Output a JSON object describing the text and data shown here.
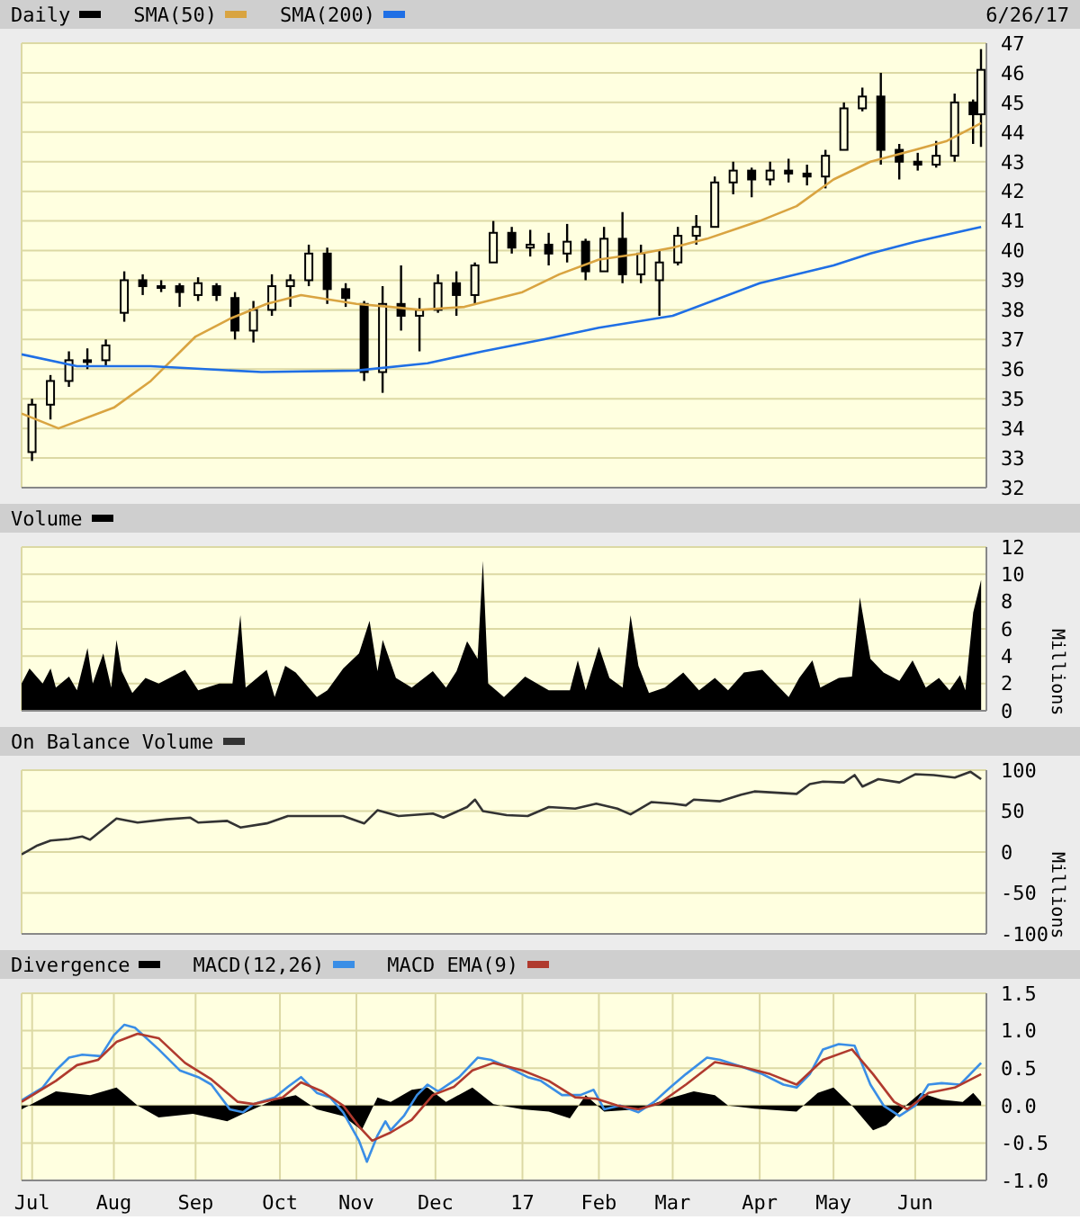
{
  "chart_data": [
    {
      "type": "candlestick",
      "legend": "top left",
      "grid": true,
      "tick_labels": "y",
      "annotations": [
        "6/26/17"
      ],
      "xlim": [
        "2016-06-27",
        "2017-06-28"
      ],
      "xticks": [
        {
          "value": "2016-07-01",
          "label": null
        },
        {
          "value": "2016-08-01",
          "label": null
        },
        {
          "value": "2016-09-01",
          "label": null
        },
        {
          "value": "2016-10-03",
          "label": null
        },
        {
          "value": "2016-11-01",
          "label": null
        },
        {
          "value": "2016-12-01",
          "label": null
        },
        {
          "value": "2017-01-03",
          "label": null
        },
        {
          "value": "2017-02-01",
          "label": null
        },
        {
          "value": "2017-03-01",
          "label": null
        },
        {
          "value": "2017-04-03",
          "label": null
        },
        {
          "value": "2017-05-01",
          "label": null
        },
        {
          "value": "2017-06-01",
          "label": null
        }
      ],
      "ylim": [
        32,
        47
      ],
      "yticks": [
        32,
        33,
        34,
        35,
        36,
        37,
        38,
        39,
        40,
        41,
        42,
        43,
        44,
        45,
        46,
        47
      ],
      "series": [
        {
          "name": "Daily",
          "color": "#000000",
          "x": [
            "2016-07-01",
            "2016-07-08",
            "2016-07-15",
            "2016-07-22",
            "2016-07-29",
            "2016-08-05",
            "2016-08-12",
            "2016-08-19",
            "2016-08-26",
            "2016-09-02",
            "2016-09-09",
            "2016-09-16",
            "2016-09-23",
            "2016-09-30",
            "2016-10-07",
            "2016-10-14",
            "2016-10-21",
            "2016-10-28",
            "2016-11-04",
            "2016-11-11",
            "2016-11-18",
            "2016-11-25",
            "2016-12-02",
            "2016-12-09",
            "2016-12-16",
            "2016-12-23",
            "2016-12-30",
            "2017-01-06",
            "2017-01-13",
            "2017-01-20",
            "2017-01-27",
            "2017-02-03",
            "2017-02-10",
            "2017-02-17",
            "2017-02-24",
            "2017-03-03",
            "2017-03-10",
            "2017-03-17",
            "2017-03-24",
            "2017-03-31",
            "2017-04-07",
            "2017-04-14",
            "2017-04-21",
            "2017-04-28",
            "2017-05-05",
            "2017-05-12",
            "2017-05-19",
            "2017-05-26",
            "2017-06-02",
            "2017-06-09",
            "2017-06-16",
            "2017-06-23",
            "2017-06-26"
          ],
          "ohlc": [
            [
              33.2,
              35.0,
              32.9,
              34.8
            ],
            [
              34.8,
              35.8,
              34.3,
              35.6
            ],
            [
              35.6,
              36.6,
              35.4,
              36.3
            ],
            [
              36.3,
              36.7,
              36.0,
              36.3
            ],
            [
              36.3,
              37.0,
              36.1,
              36.8
            ],
            [
              37.9,
              39.3,
              37.6,
              39.0
            ],
            [
              39.0,
              39.2,
              38.5,
              38.8
            ],
            [
              38.8,
              39.0,
              38.6,
              38.8
            ],
            [
              38.8,
              38.9,
              38.1,
              38.6
            ],
            [
              38.5,
              39.1,
              38.3,
              38.9
            ],
            [
              38.8,
              38.9,
              38.3,
              38.5
            ],
            [
              38.4,
              38.6,
              37.0,
              37.3
            ],
            [
              37.3,
              38.3,
              36.9,
              38.0
            ],
            [
              38.0,
              39.2,
              37.8,
              38.8
            ],
            [
              38.8,
              39.2,
              38.1,
              39.0
            ],
            [
              39.0,
              40.2,
              38.8,
              39.9
            ],
            [
              39.9,
              40.1,
              38.2,
              38.7
            ],
            [
              38.7,
              38.9,
              38.1,
              38.4
            ],
            [
              38.2,
              38.3,
              35.6,
              35.9
            ],
            [
              35.9,
              38.8,
              35.2,
              38.2
            ],
            [
              38.2,
              39.5,
              37.3,
              37.8
            ],
            [
              37.8,
              38.4,
              36.6,
              38.0
            ],
            [
              38.0,
              39.2,
              37.9,
              38.9
            ],
            [
              38.9,
              39.3,
              37.8,
              38.5
            ],
            [
              38.5,
              39.6,
              38.2,
              39.5
            ],
            [
              39.6,
              41.0,
              39.6,
              40.6
            ],
            [
              40.6,
              40.8,
              39.9,
              40.1
            ],
            [
              40.1,
              40.7,
              39.8,
              40.2
            ],
            [
              40.2,
              40.6,
              39.5,
              39.9
            ],
            [
              39.9,
              40.9,
              39.6,
              40.3
            ],
            [
              40.3,
              40.4,
              39.0,
              39.3
            ],
            [
              39.3,
              40.8,
              39.3,
              40.4
            ],
            [
              40.4,
              41.3,
              38.9,
              39.2
            ],
            [
              39.2,
              40.2,
              38.9,
              39.9
            ],
            [
              39.0,
              40.0,
              37.8,
              39.6
            ],
            [
              39.6,
              40.8,
              39.5,
              40.5
            ],
            [
              40.5,
              41.2,
              40.2,
              40.8
            ],
            [
              40.8,
              42.5,
              40.8,
              42.3
            ],
            [
              42.3,
              43.0,
              41.9,
              42.7
            ],
            [
              42.7,
              42.8,
              41.8,
              42.4
            ],
            [
              42.4,
              43.0,
              42.2,
              42.7
            ],
            [
              42.7,
              43.1,
              42.3,
              42.6
            ],
            [
              42.6,
              42.9,
              42.2,
              42.5
            ],
            [
              42.5,
              43.4,
              42.1,
              43.2
            ],
            [
              43.4,
              45.0,
              43.4,
              44.8
            ],
            [
              44.8,
              45.5,
              44.7,
              45.2
            ],
            [
              45.2,
              46.0,
              42.9,
              43.4
            ],
            [
              43.4,
              43.6,
              42.4,
              43.0
            ],
            [
              43.0,
              43.3,
              42.7,
              42.9
            ],
            [
              42.9,
              43.7,
              42.8,
              43.2
            ],
            [
              43.2,
              45.3,
              43.0,
              45.0
            ],
            [
              45.0,
              45.1,
              43.6,
              44.6
            ],
            [
              44.6,
              46.8,
              43.5,
              46.1
            ]
          ]
        },
        {
          "name": "SMA(50)",
          "type": "line",
          "color": "#d9a441",
          "x": [
            "2016-06-27",
            "2016-07-11",
            "2016-08-01",
            "2016-08-15",
            "2016-09-01",
            "2016-09-14",
            "2016-09-28",
            "2016-10-11",
            "2016-11-01",
            "2016-11-14",
            "2016-11-25",
            "2016-12-12",
            "2017-01-03",
            "2017-01-17",
            "2017-02-01",
            "2017-02-17",
            "2017-03-01",
            "2017-03-14",
            "2017-04-03",
            "2017-04-17",
            "2017-05-01",
            "2017-05-15",
            "2017-06-01",
            "2017-06-13",
            "2017-06-26"
          ],
          "values": [
            34.5,
            34.0,
            34.7,
            35.6,
            37.1,
            37.7,
            38.2,
            38.5,
            38.2,
            38.1,
            38.0,
            38.1,
            38.6,
            39.2,
            39.7,
            39.9,
            40.1,
            40.4,
            41.0,
            41.5,
            42.4,
            43.0,
            43.4,
            43.7,
            44.3
          ]
        },
        {
          "name": "SMA(200)",
          "type": "line",
          "color": "#1f6fe5",
          "x": [
            "2016-06-27",
            "2016-07-18",
            "2016-08-15",
            "2016-09-26",
            "2016-11-01",
            "2016-11-28",
            "2016-12-19",
            "2017-01-11",
            "2017-02-01",
            "2017-03-01",
            "2017-04-03",
            "2017-05-01",
            "2017-05-15",
            "2017-06-01",
            "2017-06-26"
          ],
          "values": [
            36.5,
            36.1,
            36.1,
            35.9,
            35.95,
            36.2,
            36.6,
            37.0,
            37.4,
            37.8,
            38.9,
            39.5,
            39.9,
            40.3,
            40.8
          ]
        }
      ]
    },
    {
      "type": "area",
      "legend": "top left",
      "grid": true,
      "tick_labels": "y",
      "ylabel": "Millions",
      "xlim": [
        "2016-06-27",
        "2017-06-28"
      ],
      "xticks": [
        {
          "value": "2016-07-01",
          "label": null
        },
        {
          "value": "2016-08-01",
          "label": null
        },
        {
          "value": "2016-09-01",
          "label": null
        },
        {
          "value": "2016-10-03",
          "label": null
        },
        {
          "value": "2016-11-01",
          "label": null
        },
        {
          "value": "2016-12-01",
          "label": null
        },
        {
          "value": "2017-01-03",
          "label": null
        },
        {
          "value": "2017-02-01",
          "label": null
        },
        {
          "value": "2017-03-01",
          "label": null
        },
        {
          "value": "2017-04-03",
          "label": null
        },
        {
          "value": "2017-05-01",
          "label": null
        },
        {
          "value": "2017-06-01",
          "label": null
        }
      ],
      "ylim": [
        0,
        12
      ],
      "yticks": [
        0,
        2,
        4,
        6,
        8,
        10,
        12
      ],
      "series": [
        {
          "name": "Volume",
          "color": "#000000",
          "x": [
            "2016-06-27",
            "2016-06-30",
            "2016-07-05",
            "2016-07-08",
            "2016-07-10",
            "2016-07-15",
            "2016-07-18",
            "2016-07-22",
            "2016-07-24",
            "2016-07-28",
            "2016-07-31",
            "2016-08-02",
            "2016-08-04",
            "2016-08-08",
            "2016-08-13",
            "2016-08-18",
            "2016-08-28",
            "2016-09-02",
            "2016-09-10",
            "2016-09-15",
            "2016-09-18",
            "2016-09-20",
            "2016-09-28",
            "2016-10-01",
            "2016-10-05",
            "2016-10-09",
            "2016-10-17",
            "2016-10-21",
            "2016-10-27",
            "2016-11-02",
            "2016-11-06",
            "2016-11-09",
            "2016-11-11",
            "2016-11-16",
            "2016-11-22",
            "2016-11-30",
            "2016-12-05",
            "2016-12-09",
            "2016-12-13",
            "2016-12-17",
            "2016-12-19",
            "2016-12-21",
            "2016-12-27",
            "2017-01-04",
            "2017-01-13",
            "2017-01-21",
            "2017-01-24",
            "2017-01-27",
            "2017-02-01",
            "2017-02-05",
            "2017-02-10",
            "2017-02-13",
            "2017-02-16",
            "2017-02-20",
            "2017-02-26",
            "2017-03-05",
            "2017-03-11",
            "2017-03-17",
            "2017-03-22",
            "2017-03-28",
            "2017-04-04",
            "2017-04-08",
            "2017-04-14",
            "2017-04-18",
            "2017-04-23",
            "2017-04-26",
            "2017-05-03",
            "2017-05-08",
            "2017-05-11",
            "2017-05-15",
            "2017-05-20",
            "2017-05-26",
            "2017-05-31",
            "2017-06-05",
            "2017-06-10",
            "2017-06-14",
            "2017-06-18",
            "2017-06-20",
            "2017-06-23",
            "2017-06-26"
          ],
          "values": [
            2.0,
            3.1,
            2.0,
            3.1,
            1.7,
            2.5,
            1.5,
            4.6,
            2.0,
            4.2,
            1.7,
            5.2,
            2.9,
            1.3,
            2.4,
            2.0,
            3.0,
            1.5,
            2.0,
            2.0,
            7.0,
            1.7,
            3.0,
            1.0,
            3.3,
            2.8,
            1.0,
            1.5,
            3.1,
            4.2,
            6.6,
            2.9,
            5.2,
            2.4,
            1.7,
            2.9,
            1.7,
            2.9,
            5.1,
            3.8,
            11.0,
            2.0,
            1.0,
            2.5,
            1.5,
            1.5,
            3.7,
            1.5,
            4.7,
            2.4,
            1.7,
            7.0,
            3.3,
            1.3,
            1.7,
            2.8,
            1.5,
            2.4,
            1.5,
            2.8,
            3.0,
            2.2,
            1.0,
            2.4,
            3.7,
            1.7,
            2.4,
            2.5,
            8.3,
            3.8,
            2.8,
            2.2,
            3.7,
            1.7,
            2.4,
            1.5,
            2.6,
            1.5,
            7.2,
            9.6
          ]
        }
      ]
    },
    {
      "type": "line",
      "legend": "top left",
      "grid": true,
      "tick_labels": "y",
      "ylabel": "Millions",
      "xlim": [
        "2016-06-27",
        "2017-06-28"
      ],
      "xticks": [
        {
          "value": "2016-07-01",
          "label": null
        },
        {
          "value": "2016-08-01",
          "label": null
        },
        {
          "value": "2016-09-01",
          "label": null
        },
        {
          "value": "2016-10-03",
          "label": null
        },
        {
          "value": "2016-11-01",
          "label": null
        },
        {
          "value": "2016-12-01",
          "label": null
        },
        {
          "value": "2017-01-03",
          "label": null
        },
        {
          "value": "2017-02-01",
          "label": null
        },
        {
          "value": "2017-03-01",
          "label": null
        },
        {
          "value": "2017-04-03",
          "label": null
        },
        {
          "value": "2017-05-01",
          "label": null
        },
        {
          "value": "2017-06-01",
          "label": null
        }
      ],
      "ylim": [
        -100,
        100
      ],
      "yticks": [
        -100,
        -50,
        0,
        50,
        100
      ],
      "series": [
        {
          "name": "On Balance Volume",
          "color": "#333333",
          "x": [
            "2016-06-27",
            "2016-07-03",
            "2016-07-08",
            "2016-07-15",
            "2016-07-20",
            "2016-07-23",
            "2016-08-02",
            "2016-08-10",
            "2016-08-21",
            "2016-08-30",
            "2016-09-02",
            "2016-09-13",
            "2016-09-18",
            "2016-09-28",
            "2016-10-06",
            "2016-10-17",
            "2016-10-27",
            "2016-11-04",
            "2016-11-09",
            "2016-11-17",
            "2016-11-30",
            "2016-12-04",
            "2016-12-13",
            "2016-12-16",
            "2016-12-19",
            "2016-12-28",
            "2017-01-05",
            "2017-01-13",
            "2017-01-23",
            "2017-01-31",
            "2017-02-08",
            "2017-02-13",
            "2017-02-21",
            "2017-03-01",
            "2017-03-06",
            "2017-03-09",
            "2017-03-19",
            "2017-03-27",
            "2017-04-01",
            "2017-04-17",
            "2017-04-22",
            "2017-04-27",
            "2017-05-05",
            "2017-05-09",
            "2017-05-12",
            "2017-05-18",
            "2017-05-26",
            "2017-06-01",
            "2017-06-08",
            "2017-06-16",
            "2017-06-22",
            "2017-06-26"
          ],
          "values": [
            -3,
            8,
            14,
            16,
            19,
            15,
            41,
            36,
            40,
            42,
            36,
            38,
            30,
            35,
            44,
            44,
            44,
            35,
            51,
            44,
            47,
            42,
            55,
            64,
            50,
            45,
            44,
            55,
            53,
            59,
            53,
            46,
            61,
            59,
            57,
            64,
            62,
            70,
            74,
            71,
            83,
            86,
            85,
            94,
            80,
            89,
            85,
            95,
            94,
            91,
            98,
            89
          ]
        }
      ]
    },
    {
      "type": "line",
      "legend": "top left",
      "grid": true,
      "xlim": [
        "2016-06-27",
        "2017-06-28"
      ],
      "xticks": [
        {
          "value": "2016-07-01",
          "label": "Jul"
        },
        {
          "value": "2016-08-01",
          "label": "Aug"
        },
        {
          "value": "2016-09-01",
          "label": "Sep"
        },
        {
          "value": "2016-10-03",
          "label": "Oct"
        },
        {
          "value": "2016-11-01",
          "label": "Nov"
        },
        {
          "value": "2016-12-01",
          "label": "Dec"
        },
        {
          "value": "2017-01-03",
          "label": "17"
        },
        {
          "value": "2017-02-01",
          "label": "Feb"
        },
        {
          "value": "2017-03-01",
          "label": "Mar"
        },
        {
          "value": "2017-04-03",
          "label": "Apr"
        },
        {
          "value": "2017-05-01",
          "label": "May"
        },
        {
          "value": "2017-06-01",
          "label": "Jun"
        }
      ],
      "ylim": [
        -1,
        1.5
      ],
      "yticks": [
        {
          "value": -1,
          "label": "-1.0"
        },
        {
          "value": -0.5,
          "label": "-0.5"
        },
        {
          "value": 0,
          "label": "0.0"
        },
        {
          "value": 0.5,
          "label": "0.5"
        },
        {
          "value": 1,
          "label": "1.0"
        },
        {
          "value": 1.5,
          "label": "1.5"
        }
      ],
      "series": [
        {
          "name": "Divergence",
          "type": "area",
          "color": "#000000",
          "x": [
            "2016-06-27",
            "2016-07-10",
            "2016-07-23",
            "2016-08-02",
            "2016-08-10",
            "2016-08-18",
            "2016-08-31",
            "2016-09-13",
            "2016-09-19",
            "2016-10-01",
            "2016-10-09",
            "2016-10-17",
            "2016-10-27",
            "2016-11-03",
            "2016-11-09",
            "2016-11-14",
            "2016-11-22",
            "2016-11-28",
            "2016-12-05",
            "2016-12-15",
            "2016-12-23",
            "2017-01-03",
            "2017-01-13",
            "2017-01-21",
            "2017-01-27",
            "2017-02-03",
            "2017-02-16",
            "2017-02-26",
            "2017-03-09",
            "2017-03-17",
            "2017-03-22",
            "2017-04-01",
            "2017-04-17",
            "2017-04-25",
            "2017-05-01",
            "2017-05-08",
            "2017-05-16",
            "2017-05-21",
            "2017-05-29",
            "2017-06-03",
            "2017-06-11",
            "2017-06-19",
            "2017-06-23",
            "2017-06-26"
          ],
          "values": [
            -0.05,
            0.19,
            0.14,
            0.24,
            0,
            -0.16,
            -0.11,
            -0.21,
            -0.11,
            0.08,
            0.14,
            -0.05,
            -0.14,
            -0.33,
            0.11,
            0.05,
            0.21,
            0.24,
            0.05,
            0.24,
            0.02,
            -0.05,
            -0.08,
            -0.17,
            0.14,
            -0.08,
            -0.05,
            0.08,
            0.19,
            0.14,
            0,
            -0.04,
            -0.08,
            0.17,
            0.24,
            0,
            -0.33,
            -0.26,
            0.02,
            0.17,
            0.08,
            0.05,
            0.17,
            0.05
          ]
        },
        {
          "name": "MACD(12,26)",
          "color": "#3a8ee6",
          "x": [
            "2016-06-27",
            "2016-07-05",
            "2016-07-10",
            "2016-07-15",
            "2016-07-20",
            "2016-07-27",
            "2016-08-01",
            "2016-08-05",
            "2016-08-09",
            "2016-08-18",
            "2016-08-26",
            "2016-09-02",
            "2016-09-07",
            "2016-09-14",
            "2016-09-19",
            "2016-09-23",
            "2016-10-01",
            "2016-10-06",
            "2016-10-11",
            "2016-10-17",
            "2016-10-22",
            "2016-10-27",
            "2016-11-02",
            "2016-11-05",
            "2016-11-09",
            "2016-11-12",
            "2016-11-14",
            "2016-11-19",
            "2016-11-24",
            "2016-11-28",
            "2016-12-02",
            "2016-12-10",
            "2016-12-17",
            "2016-12-22",
            "2016-12-28",
            "2017-01-05",
            "2017-01-10",
            "2017-01-18",
            "2017-01-25",
            "2017-01-30",
            "2017-02-03",
            "2017-02-09",
            "2017-02-16",
            "2017-02-22",
            "2017-02-28",
            "2017-03-06",
            "2017-03-14",
            "2017-03-19",
            "2017-03-27",
            "2017-04-04",
            "2017-04-12",
            "2017-04-17",
            "2017-04-22",
            "2017-04-27",
            "2017-05-03",
            "2017-05-09",
            "2017-05-15",
            "2017-05-20",
            "2017-05-26",
            "2017-06-01",
            "2017-06-06",
            "2017-06-11",
            "2017-06-18",
            "2017-06-26"
          ],
          "values": [
            0.07,
            0.24,
            0.47,
            0.64,
            0.68,
            0.66,
            0.94,
            1.08,
            1.04,
            0.75,
            0.47,
            0.38,
            0.28,
            -0.05,
            -0.09,
            0.02,
            0.11,
            0.25,
            0.38,
            0.17,
            0.11,
            -0.09,
            -0.47,
            -0.75,
            -0.4,
            -0.21,
            -0.33,
            -0.14,
            0.14,
            0.28,
            0.19,
            0.38,
            0.64,
            0.61,
            0.52,
            0.38,
            0.33,
            0.14,
            0.14,
            0.21,
            -0.05,
            0,
            -0.09,
            0.05,
            0.24,
            0.42,
            0.64,
            0.61,
            0.52,
            0.42,
            0.28,
            0.24,
            0.42,
            0.75,
            0.82,
            0.8,
            0.28,
            0,
            -0.14,
            0,
            0.28,
            0.3,
            0.28,
            0.57
          ]
        },
        {
          "name": "MACD EMA(9)",
          "color": "#b03a2e",
          "x": [
            "2016-06-27",
            "2016-07-10",
            "2016-07-18",
            "2016-07-26",
            "2016-08-02",
            "2016-08-10",
            "2016-08-18",
            "2016-08-28",
            "2016-09-07",
            "2016-09-17",
            "2016-09-23",
            "2016-10-04",
            "2016-10-11",
            "2016-10-19",
            "2016-10-27",
            "2016-11-02",
            "2016-11-07",
            "2016-11-14",
            "2016-11-22",
            "2016-11-30",
            "2016-12-08",
            "2016-12-15",
            "2016-12-23",
            "2017-01-03",
            "2017-01-13",
            "2017-01-23",
            "2017-01-31",
            "2017-02-08",
            "2017-02-16",
            "2017-02-24",
            "2017-03-06",
            "2017-03-17",
            "2017-03-27",
            "2017-04-07",
            "2017-04-17",
            "2017-04-27",
            "2017-05-08",
            "2017-05-16",
            "2017-05-24",
            "2017-05-29",
            "2017-06-06",
            "2017-06-16",
            "2017-06-26"
          ],
          "values": [
            0.05,
            0.33,
            0.54,
            0.61,
            0.85,
            0.96,
            0.9,
            0.57,
            0.35,
            0.05,
            0.02,
            0.11,
            0.31,
            0.19,
            0,
            -0.28,
            -0.47,
            -0.36,
            -0.19,
            0.14,
            0.25,
            0.47,
            0.57,
            0.47,
            0.33,
            0.11,
            0.09,
            0,
            -0.05,
            0.03,
            0.28,
            0.58,
            0.52,
            0.42,
            0.28,
            0.61,
            0.75,
            0.42,
            0.05,
            -0.05,
            0.17,
            0.24,
            0.42
          ]
        }
      ]
    }
  ]
}
